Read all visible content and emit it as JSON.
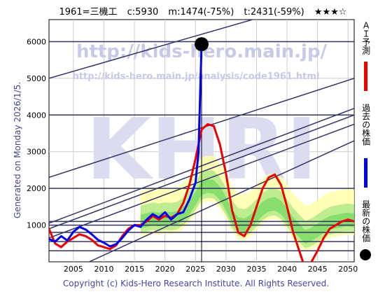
{
  "header": {
    "code": "1961=三機工",
    "c": "c:5930",
    "m": "m:1474(-75%)",
    "t": "t:2431(-59%)",
    "stars": "★★★☆"
  },
  "watermark": {
    "url": "http://kids-hero.main.jp/",
    "analysis": "http://kids-hero.main.jp/analysis/code1961.html",
    "big": "KHRI"
  },
  "side_label": "Generated on Monday 2026/1/5.",
  "copyright": "Copyright (c) Kids-Hero Research Institute. All Rights Reserved.",
  "legend": [
    {
      "label": "ＡＩ予測",
      "color": "#ee0000"
    },
    {
      "label": "過去の株価",
      "color": "#0000ee"
    },
    {
      "label": "最新の株価",
      "color": "#000000"
    }
  ],
  "colors": {
    "prediction": "#ee0000",
    "past": "#0000ee",
    "green_band": "#44cc44",
    "yellow_band": "#ffffaa",
    "trend_lines": "#333366"
  },
  "chart_data": {
    "type": "line",
    "xlim": [
      2001,
      2051
    ],
    "ylim": [
      0,
      6600
    ],
    "x_ticks": [
      2005,
      2010,
      2015,
      2020,
      2025,
      2030,
      2035,
      2040,
      2045,
      2050
    ],
    "y_ticks": [
      1000,
      2000,
      3000,
      4000,
      5000,
      6000
    ],
    "grid": true,
    "current_point": {
      "x": 2026.0,
      "y": 5930
    },
    "horizontal_lines": [
      6000,
      4000,
      2000,
      1100,
      1000,
      800,
      550,
      300
    ],
    "trend_lines": [
      {
        "x1": 2001,
        "y1": 5000,
        "x2": 2051,
        "y2": 7400
      },
      {
        "x1": 2001,
        "y1": 2300,
        "x2": 2051,
        "y2": 5000
      },
      {
        "x1": 2001,
        "y1": 1050,
        "x2": 2051,
        "y2": 4180
      },
      {
        "x1": 2001,
        "y1": 900,
        "x2": 2051,
        "y2": 4000
      },
      {
        "x1": 2001,
        "y1": 650,
        "x2": 2051,
        "y2": 3750
      },
      {
        "x1": 2001,
        "y1": -500,
        "x2": 2051,
        "y2": 3300
      }
    ],
    "series": [
      {
        "name": "過去の株価",
        "x": [
          2001,
          2002,
          2003,
          2004,
          2005,
          2006,
          2007,
          2008,
          2009,
          2010,
          2011,
          2012,
          2013,
          2014,
          2015,
          2016,
          2017,
          2018,
          2019,
          2020,
          2021,
          2022,
          2023,
          2024,
          2025,
          2025.5,
          2025.8,
          2026.0
        ],
        "values": [
          620,
          550,
          700,
          580,
          820,
          950,
          880,
          750,
          600,
          520,
          420,
          480,
          650,
          850,
          1000,
          950,
          1150,
          1300,
          1200,
          1350,
          1150,
          1300,
          1350,
          1700,
          2150,
          3000,
          4800,
          5930
        ]
      },
      {
        "name": "ＡＩ予測",
        "x": [
          2001,
          2002,
          2003,
          2004,
          2005,
          2006,
          2007,
          2008,
          2009,
          2010,
          2011,
          2012,
          2013,
          2014,
          2015,
          2016,
          2017,
          2018,
          2019,
          2020,
          2021,
          2022,
          2023,
          2024,
          2025,
          2026,
          2027,
          2028,
          2029,
          2030,
          2031,
          2032,
          2033,
          2034,
          2035,
          2036,
          2037,
          2038,
          2039,
          2040,
          2041,
          2042,
          2043,
          2044,
          2045,
          2046,
          2047,
          2048,
          2049,
          2050,
          2051
        ],
        "values": [
          900,
          500,
          400,
          550,
          650,
          750,
          700,
          600,
          450,
          400,
          350,
          450,
          700,
          900,
          1000,
          1000,
          1100,
          1250,
          1150,
          1250,
          1200,
          1300,
          1600,
          2100,
          2800,
          3600,
          3750,
          3700,
          3200,
          2400,
          1400,
          800,
          700,
          1000,
          1500,
          2000,
          2300,
          2380,
          2100,
          1500,
          800,
          300,
          -200,
          0,
          300,
          650,
          900,
          1000,
          1100,
          1150,
          1100
        ]
      }
    ]
  }
}
